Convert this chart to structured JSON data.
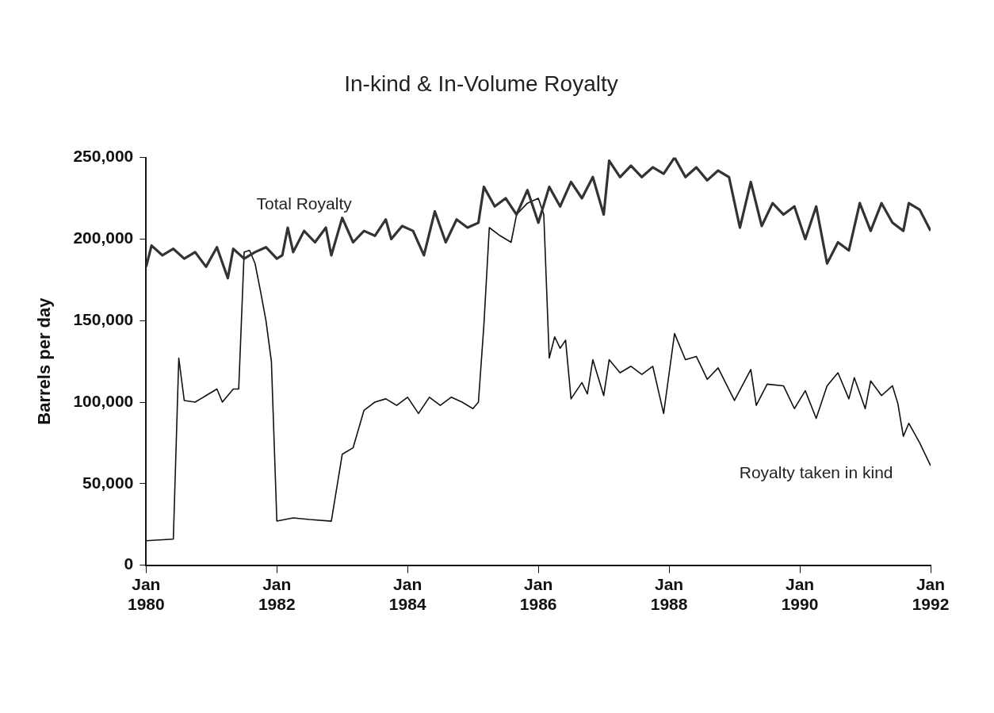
{
  "chart_data": {
    "type": "line",
    "title": "In-kind & In-Volume Royalty",
    "ylabel": "Barrels per day",
    "xlim": [
      "1980-01",
      "1992-01"
    ],
    "xticks": [
      {
        "value": "1980-01",
        "label": "Jan\n1980"
      },
      {
        "value": "1982-01",
        "label": "Jan\n1982"
      },
      {
        "value": "1984-01",
        "label": "Jan\n1984"
      },
      {
        "value": "1986-01",
        "label": "Jan\n1986"
      },
      {
        "value": "1988-01",
        "label": "Jan\n1988"
      },
      {
        "value": "1990-01",
        "label": "Jan\n1990"
      },
      {
        "value": "1992-01",
        "label": "Jan\n1992"
      }
    ],
    "ylim": [
      0,
      250000
    ],
    "yticks": [
      0,
      {
        "value": 50000,
        "label": "50,000"
      },
      {
        "value": 100000,
        "label": "100,000"
      },
      {
        "value": 150000,
        "label": "150,000"
      },
      {
        "value": 200000,
        "label": "200,000"
      },
      {
        "value": 250000,
        "label": "250,000"
      }
    ],
    "grid": false,
    "legend": false,
    "marker": "none",
    "line_style": "solid",
    "series": [
      {
        "name": "Total Royalty",
        "color": "#333333",
        "x": [
          "1980-01",
          "1980-02",
          "1980-04",
          "1980-06",
          "1980-08",
          "1980-10",
          "1980-12",
          "1981-02",
          "1981-04",
          "1981-05",
          "1981-07",
          "1981-09",
          "1981-11",
          "1982-01",
          "1982-02",
          "1982-03",
          "1982-04",
          "1982-06",
          "1982-08",
          "1982-10",
          "1982-11",
          "1983-01",
          "1983-03",
          "1983-05",
          "1983-07",
          "1983-09",
          "1983-10",
          "1983-12",
          "1984-02",
          "1984-04",
          "1984-06",
          "1984-08",
          "1984-10",
          "1984-12",
          "1985-02",
          "1985-03",
          "1985-05",
          "1985-07",
          "1985-09",
          "1985-11",
          "1986-01",
          "1986-03",
          "1986-05",
          "1986-07",
          "1986-09",
          "1986-11",
          "1987-01",
          "1987-02",
          "1987-04",
          "1987-06",
          "1987-08",
          "1987-10",
          "1987-12",
          "1988-02",
          "1988-04",
          "1988-06",
          "1988-08",
          "1988-10",
          "1988-12",
          "1989-02",
          "1989-04",
          "1989-06",
          "1989-08",
          "1989-10",
          "1989-12",
          "1990-02",
          "1990-04",
          "1990-06",
          "1990-08",
          "1990-10",
          "1990-12",
          "1991-02",
          "1991-04",
          "1991-06",
          "1991-08",
          "1991-09",
          "1991-11",
          "1992-01"
        ],
        "values": [
          183000,
          196000,
          190000,
          194000,
          188000,
          192000,
          183000,
          195000,
          176000,
          194000,
          188000,
          192000,
          195000,
          188000,
          190000,
          207000,
          192000,
          205000,
          198000,
          207000,
          190000,
          213000,
          198000,
          205000,
          202000,
          212000,
          200000,
          208000,
          205000,
          190000,
          217000,
          198000,
          212000,
          207000,
          210000,
          232000,
          220000,
          225000,
          215000,
          230000,
          210000,
          232000,
          220000,
          235000,
          225000,
          238000,
          215000,
          248000,
          238000,
          245000,
          238000,
          244000,
          240000,
          250000,
          238000,
          244000,
          236000,
          242000,
          238000,
          207000,
          235000,
          208000,
          222000,
          215000,
          220000,
          200000,
          220000,
          185000,
          198000,
          193000,
          222000,
          205000,
          222000,
          210000,
          205000,
          222000,
          218000,
          205000
        ]
      },
      {
        "name": "Royalty taken in kind",
        "color": "#111111",
        "x": [
          "1980-01",
          "1980-06",
          "1980-07",
          "1980-08",
          "1980-10",
          "1980-12",
          "1981-02",
          "1981-03",
          "1981-05",
          "1981-06",
          "1981-07",
          "1981-08",
          "1981-09",
          "1981-10",
          "1981-11",
          "1981-12",
          "1982-01",
          "1982-04",
          "1982-07",
          "1982-11",
          "1983-01",
          "1983-03",
          "1983-05",
          "1983-07",
          "1983-09",
          "1983-11",
          "1984-01",
          "1984-03",
          "1984-05",
          "1984-07",
          "1984-09",
          "1984-11",
          "1985-01",
          "1985-02",
          "1985-03",
          "1985-04",
          "1985-06",
          "1985-08",
          "1985-09",
          "1985-11",
          "1986-01",
          "1986-02",
          "1986-03",
          "1986-04",
          "1986-05",
          "1986-06",
          "1986-07",
          "1986-09",
          "1986-10",
          "1986-11",
          "1987-01",
          "1987-02",
          "1987-04",
          "1987-06",
          "1987-08",
          "1987-10",
          "1987-12",
          "1988-02",
          "1988-04",
          "1988-06",
          "1988-08",
          "1988-10",
          "1989-01",
          "1989-04",
          "1989-05",
          "1989-07",
          "1989-10",
          "1989-12",
          "1990-02",
          "1990-04",
          "1990-06",
          "1990-08",
          "1990-10",
          "1990-11",
          "1991-01",
          "1991-02",
          "1991-04",
          "1991-06",
          "1991-07",
          "1991-08",
          "1991-09",
          "1991-11",
          "1992-01"
        ],
        "values": [
          15000,
          16000,
          127000,
          101000,
          100000,
          104000,
          108000,
          100000,
          108000,
          108000,
          192000,
          193000,
          185000,
          168000,
          150000,
          125000,
          27000,
          29000,
          28000,
          27000,
          68000,
          72000,
          95000,
          100000,
          102000,
          98000,
          103000,
          93000,
          103000,
          98000,
          103000,
          100000,
          96000,
          100000,
          147000,
          207000,
          202000,
          198000,
          215000,
          222000,
          225000,
          215000,
          127000,
          140000,
          133000,
          138000,
          102000,
          112000,
          105000,
          126000,
          104000,
          126000,
          118000,
          122000,
          117000,
          122000,
          93000,
          142000,
          126000,
          128000,
          114000,
          121000,
          101000,
          120000,
          98000,
          111000,
          110000,
          96000,
          107000,
          90000,
          110000,
          118000,
          102000,
          115000,
          96000,
          113000,
          104000,
          110000,
          99000,
          79000,
          87000,
          75000,
          61000
        ]
      }
    ]
  }
}
